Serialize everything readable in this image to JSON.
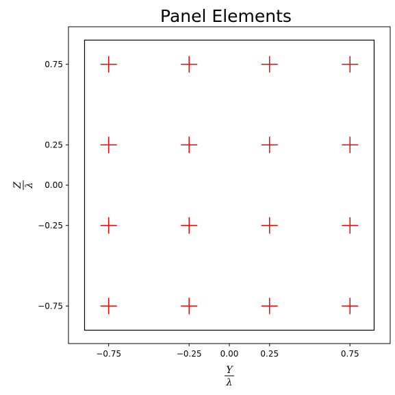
{
  "chart_data": {
    "type": "scatter",
    "title": "Panel Elements",
    "xlabel": {
      "numerator": "Y",
      "denominator": "λ"
    },
    "ylabel": {
      "numerator": "Z",
      "denominator": "λ"
    },
    "xlim": [
      -1.0,
      1.0
    ],
    "ylim": [
      -1.0,
      1.0
    ],
    "grid": false,
    "aspect": "equal",
    "x_ticks": [
      -0.75,
      -0.25,
      0.0,
      0.25,
      0.75
    ],
    "x_tick_labels": [
      "−0.75",
      "−0.25",
      "0.00",
      "0.25",
      "0.75"
    ],
    "y_ticks": [
      0.75,
      0.25,
      0.0,
      -0.25,
      -0.75
    ],
    "y_tick_labels": [
      "0.75",
      "0.25",
      "0.00",
      "−0.25",
      "−0.75"
    ],
    "boundary": {
      "type": "rectangle",
      "xmin": -0.9,
      "xmax": 0.9,
      "ymin": -0.9,
      "ymax": 0.9,
      "color": "#000000"
    },
    "series": [
      {
        "marker": "plus",
        "color": "#ff0000",
        "points": [
          {
            "x": -0.75,
            "y": 0.75
          },
          {
            "x": -0.25,
            "y": 0.75
          },
          {
            "x": 0.25,
            "y": 0.75
          },
          {
            "x": 0.75,
            "y": 0.75
          },
          {
            "x": -0.75,
            "y": 0.25
          },
          {
            "x": -0.25,
            "y": 0.25
          },
          {
            "x": 0.25,
            "y": 0.25
          },
          {
            "x": 0.75,
            "y": 0.25
          },
          {
            "x": -0.75,
            "y": -0.25
          },
          {
            "x": -0.25,
            "y": -0.25
          },
          {
            "x": 0.25,
            "y": -0.25
          },
          {
            "x": 0.75,
            "y": -0.25
          },
          {
            "x": -0.75,
            "y": -0.75
          },
          {
            "x": -0.25,
            "y": -0.75
          },
          {
            "x": 0.25,
            "y": -0.75
          },
          {
            "x": 0.75,
            "y": -0.75
          }
        ]
      }
    ]
  }
}
